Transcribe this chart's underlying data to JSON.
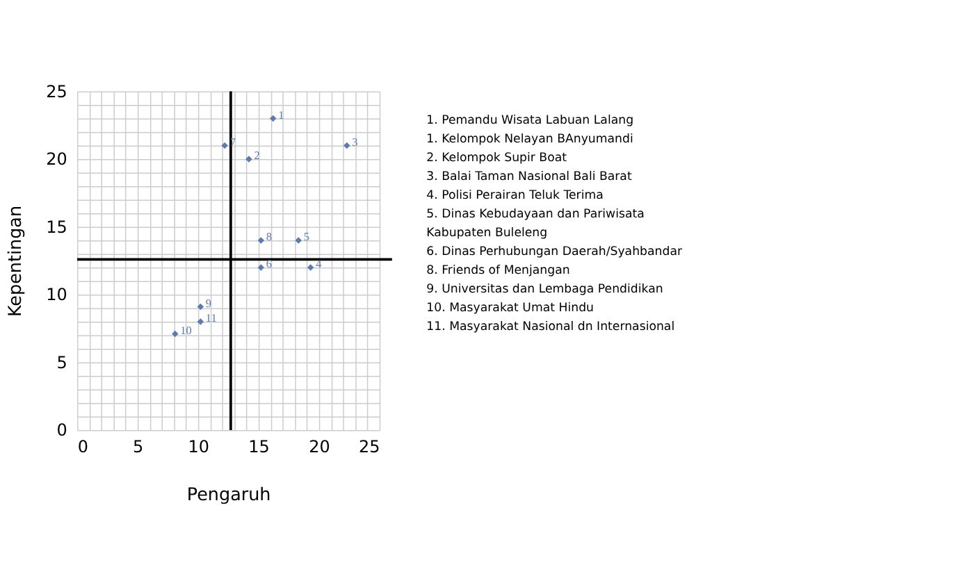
{
  "chart_data": {
    "type": "scatter",
    "xlabel": "Pengaruh",
    "ylabel": "Kepentingan",
    "x": [
      16.2,
      12.2,
      14.2,
      22.3,
      15.2,
      18.3,
      15.2,
      19.3,
      10.2,
      10.2,
      8.1
    ],
    "values": [
      23,
      21,
      20,
      21,
      14,
      14,
      12,
      12,
      9.1,
      8,
      7.1
    ],
    "color": "#5b7bb0",
    "marker": "diamond",
    "xlim": [
      0,
      25
    ],
    "ylim": [
      0,
      25
    ],
    "xticks": [
      0,
      {
        "value": 1,
        "label": null
      },
      {
        "value": 2,
        "label": null
      },
      {
        "value": 3,
        "label": null
      },
      {
        "value": 4,
        "label": null
      },
      5,
      {
        "value": 6,
        "label": null
      },
      {
        "value": 7,
        "label": null
      },
      {
        "value": 8,
        "label": null
      },
      {
        "value": 9,
        "label": null
      },
      10,
      {
        "value": 11,
        "label": null
      },
      {
        "value": 12,
        "label": null
      },
      {
        "value": 13,
        "label": null
      },
      {
        "value": 14,
        "label": null
      },
      15,
      {
        "value": 16,
        "label": null
      },
      {
        "value": 17,
        "label": null
      },
      {
        "value": 18,
        "label": null
      },
      {
        "value": 19,
        "label": null
      },
      20,
      {
        "value": 21,
        "label": null
      },
      {
        "value": 22,
        "label": null
      },
      {
        "value": 23,
        "label": null
      },
      {
        "value": 24,
        "label": null
      },
      25
    ],
    "yticks": [
      0,
      {
        "value": 1,
        "label": null
      },
      {
        "value": 2,
        "label": null
      },
      {
        "value": 3,
        "label": null
      },
      {
        "value": 4,
        "label": null
      },
      5,
      {
        "value": 6,
        "label": null
      },
      {
        "value": 7,
        "label": null
      },
      {
        "value": 8,
        "label": null
      },
      {
        "value": 9,
        "label": null
      },
      10,
      {
        "value": 11,
        "label": null
      },
      {
        "value": 12,
        "label": null
      },
      {
        "value": 13,
        "label": null
      },
      {
        "value": 14,
        "label": null
      },
      15,
      {
        "value": 16,
        "label": null
      },
      {
        "value": 17,
        "label": null
      },
      {
        "value": 18,
        "label": null
      },
      {
        "value": 19,
        "label": null
      },
      20,
      {
        "value": 21,
        "label": null
      },
      {
        "value": 22,
        "label": null
      },
      {
        "value": 23,
        "label": null
      },
      {
        "value": 24,
        "label": null
      },
      25
    ],
    "grid": true,
    "ref_lines": [
      {
        "axis": "x",
        "value": 12.7,
        "color": "#000000"
      },
      {
        "axis": "y",
        "value": 12.6,
        "color": "#000000"
      }
    ],
    "annotations": [
      {
        "text": "1",
        "x": 16.2,
        "y": 23
      },
      {
        "text": "7",
        "x": 12.2,
        "y": 21
      },
      {
        "text": "2",
        "x": 14.2,
        "y": 20
      },
      {
        "text": "3",
        "x": 22.3,
        "y": 21
      },
      {
        "text": "8",
        "x": 15.2,
        "y": 14
      },
      {
        "text": "5",
        "x": 18.3,
        "y": 14
      },
      {
        "text": "6",
        "x": 15.2,
        "y": 12
      },
      {
        "text": "4",
        "x": 19.3,
        "y": 12
      },
      {
        "text": "9",
        "x": 10.2,
        "y": 9.1
      },
      {
        "text": "11",
        "x": 10.2,
        "y": 8
      },
      {
        "text": "10",
        "x": 8.1,
        "y": 7.1
      },
      "1.  Pemandu Wisata Labuan Lalang",
      "1.  Kelompok Nelayan BAnyumandi",
      "2.  Kelompok Supir Boat",
      "3.  Balai Taman Nasional Bali Barat",
      "4.  Polisi Perairan Teluk Terima",
      "5.  Dinas Kebudayaan dan Pariwisata\n     Kabupaten Buleleng",
      "6.  Dinas Perhubungan Daerah/Syahbandar",
      "8.  Friends of Menjangan",
      "9.  Universitas dan Lembaga Pendidikan",
      "10. Masyarakat Umat Hindu",
      "11. Masyarakat Nasional dn Internasional"
    ]
  }
}
